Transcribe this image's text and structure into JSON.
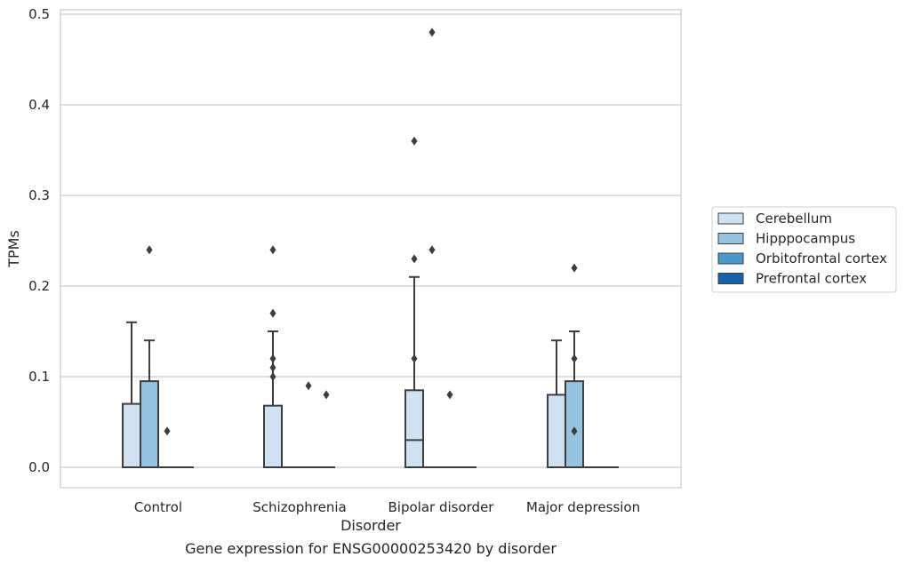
{
  "chart_data": {
    "type": "box",
    "title": "Gene expression for ENSG00000253420 by disorder",
    "xlabel": "Disorder",
    "ylabel": "TPMs",
    "ylim": [
      -0.023,
      0.505
    ],
    "yticks": [
      "0.0",
      "0.1",
      "0.2",
      "0.3",
      "0.4",
      "0.5"
    ],
    "grid": true,
    "legend_position": "right",
    "categories": [
      "Control",
      "Schizophrenia",
      "Bipolar disorder",
      "Major depression"
    ],
    "series": [
      {
        "name": "Cerebellum",
        "color": "#d0e1f2",
        "boxes": [
          {
            "q1": 0.0,
            "median": 0.0,
            "q3": 0.07,
            "whislo": 0.0,
            "whishi": 0.16,
            "outliers": []
          },
          {
            "q1": 0.0,
            "median": 0.0,
            "q3": 0.068,
            "whislo": 0.0,
            "whishi": 0.15,
            "outliers": [
              0.24,
              0.17,
              0.12,
              0.11,
              0.1
            ]
          },
          {
            "q1": 0.0,
            "median": 0.03,
            "q3": 0.085,
            "whislo": 0.0,
            "whishi": 0.21,
            "outliers": [
              0.36,
              0.23,
              0.12
            ]
          },
          {
            "q1": 0.0,
            "median": 0.0,
            "q3": 0.08,
            "whislo": 0.0,
            "whishi": 0.14,
            "outliers": []
          }
        ]
      },
      {
        "name": "Hipppocampus",
        "color": "#94c4df",
        "boxes": [
          {
            "q1": 0.0,
            "median": 0.0,
            "q3": 0.095,
            "whislo": 0.0,
            "whishi": 0.14,
            "outliers": [
              0.24
            ]
          },
          {
            "q1": 0.0,
            "median": 0.0,
            "q3": 0.0,
            "whislo": 0.0,
            "whishi": 0.0,
            "outliers": []
          },
          {
            "q1": 0.0,
            "median": 0.0,
            "q3": 0.0,
            "whislo": 0.0,
            "whishi": 0.0,
            "outliers": [
              0.48,
              0.24
            ]
          },
          {
            "q1": 0.0,
            "median": 0.0,
            "q3": 0.095,
            "whislo": 0.0,
            "whishi": 0.15,
            "outliers": [
              0.22,
              0.12,
              0.04
            ]
          }
        ]
      },
      {
        "name": "Orbitofrontal cortex",
        "color": "#4a98c9",
        "boxes": [
          {
            "q1": 0.0,
            "median": 0.0,
            "q3": 0.0,
            "whislo": 0.0,
            "whishi": 0.0,
            "outliers": [
              0.04
            ]
          },
          {
            "q1": 0.0,
            "median": 0.0,
            "q3": 0.0,
            "whislo": 0.0,
            "whishi": 0.0,
            "outliers": [
              0.09
            ]
          },
          {
            "q1": 0.0,
            "median": 0.0,
            "q3": 0.0,
            "whislo": 0.0,
            "whishi": 0.0,
            "outliers": [
              0.08
            ]
          },
          {
            "q1": 0.0,
            "median": 0.0,
            "q3": 0.0,
            "whislo": 0.0,
            "whishi": 0.0,
            "outliers": []
          }
        ]
      },
      {
        "name": "Prefrontal cortex",
        "color": "#1764ab",
        "boxes": [
          {
            "q1": 0.0,
            "median": 0.0,
            "q3": 0.0,
            "whislo": 0.0,
            "whishi": 0.0,
            "outliers": []
          },
          {
            "q1": 0.0,
            "median": 0.0,
            "q3": 0.0,
            "whislo": 0.0,
            "whishi": 0.0,
            "outliers": [
              0.08
            ]
          },
          {
            "q1": 0.0,
            "median": 0.0,
            "q3": 0.0,
            "whislo": 0.0,
            "whishi": 0.0,
            "outliers": []
          },
          {
            "q1": 0.0,
            "median": 0.0,
            "q3": 0.0,
            "whislo": 0.0,
            "whishi": 0.0,
            "outliers": []
          }
        ]
      }
    ]
  }
}
